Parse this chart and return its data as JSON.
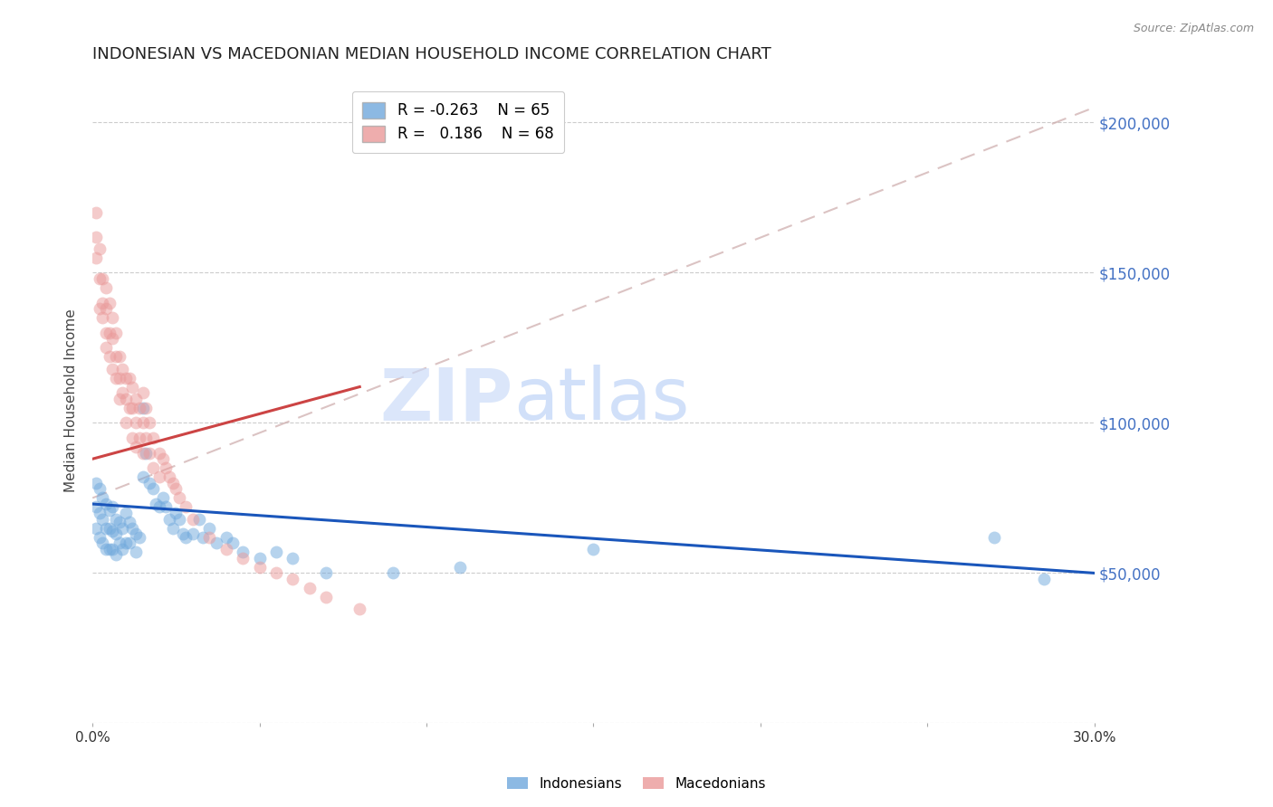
{
  "title": "INDONESIAN VS MACEDONIAN MEDIAN HOUSEHOLD INCOME CORRELATION CHART",
  "source": "Source: ZipAtlas.com",
  "ylabel": "Median Household Income",
  "yticks": [
    0,
    50000,
    100000,
    150000,
    200000
  ],
  "ytick_labels": [
    "",
    "$50,000",
    "$100,000",
    "$150,000",
    "$200,000"
  ],
  "ylim": [
    0,
    215000
  ],
  "xlim": [
    0.0,
    0.3
  ],
  "watermark_zip": "ZIP",
  "watermark_atlas": "atlas",
  "legend": {
    "indonesian": {
      "R": "-0.263",
      "N": "65",
      "color": "#6fa8dc"
    },
    "macedonian": {
      "R": "0.186",
      "N": "68",
      "color": "#ea9999"
    }
  },
  "indonesian_scatter": {
    "x": [
      0.001,
      0.001,
      0.001,
      0.002,
      0.002,
      0.002,
      0.003,
      0.003,
      0.003,
      0.004,
      0.004,
      0.004,
      0.005,
      0.005,
      0.005,
      0.006,
      0.006,
      0.006,
      0.007,
      0.007,
      0.007,
      0.008,
      0.008,
      0.009,
      0.009,
      0.01,
      0.01,
      0.011,
      0.011,
      0.012,
      0.013,
      0.013,
      0.014,
      0.015,
      0.015,
      0.016,
      0.017,
      0.018,
      0.019,
      0.02,
      0.021,
      0.022,
      0.023,
      0.024,
      0.025,
      0.026,
      0.027,
      0.028,
      0.03,
      0.032,
      0.033,
      0.035,
      0.037,
      0.04,
      0.042,
      0.045,
      0.05,
      0.055,
      0.06,
      0.07,
      0.09,
      0.11,
      0.15,
      0.27,
      0.285
    ],
    "y": [
      80000,
      72000,
      65000,
      78000,
      70000,
      62000,
      75000,
      68000,
      60000,
      73000,
      65000,
      58000,
      71000,
      65000,
      58000,
      72000,
      64000,
      58000,
      68000,
      63000,
      56000,
      67000,
      60000,
      65000,
      58000,
      70000,
      60000,
      67000,
      60000,
      65000,
      63000,
      57000,
      62000,
      105000,
      82000,
      90000,
      80000,
      78000,
      73000,
      72000,
      75000,
      72000,
      68000,
      65000,
      70000,
      68000,
      63000,
      62000,
      63000,
      68000,
      62000,
      65000,
      60000,
      62000,
      60000,
      57000,
      55000,
      57000,
      55000,
      50000,
      50000,
      52000,
      58000,
      62000,
      48000
    ]
  },
  "macedonian_scatter": {
    "x": [
      0.001,
      0.001,
      0.001,
      0.002,
      0.002,
      0.002,
      0.003,
      0.003,
      0.003,
      0.004,
      0.004,
      0.004,
      0.004,
      0.005,
      0.005,
      0.005,
      0.006,
      0.006,
      0.006,
      0.007,
      0.007,
      0.007,
      0.008,
      0.008,
      0.008,
      0.009,
      0.009,
      0.01,
      0.01,
      0.01,
      0.011,
      0.011,
      0.012,
      0.012,
      0.012,
      0.013,
      0.013,
      0.013,
      0.014,
      0.014,
      0.015,
      0.015,
      0.015,
      0.016,
      0.016,
      0.017,
      0.017,
      0.018,
      0.018,
      0.02,
      0.02,
      0.021,
      0.022,
      0.023,
      0.024,
      0.025,
      0.026,
      0.028,
      0.03,
      0.035,
      0.04,
      0.045,
      0.05,
      0.055,
      0.06,
      0.065,
      0.07,
      0.08
    ],
    "y": [
      170000,
      162000,
      155000,
      158000,
      148000,
      138000,
      148000,
      140000,
      135000,
      145000,
      138000,
      130000,
      125000,
      140000,
      130000,
      122000,
      135000,
      128000,
      118000,
      130000,
      122000,
      115000,
      122000,
      115000,
      108000,
      118000,
      110000,
      115000,
      108000,
      100000,
      115000,
      105000,
      112000,
      105000,
      95000,
      108000,
      100000,
      92000,
      105000,
      95000,
      110000,
      100000,
      90000,
      105000,
      95000,
      100000,
      90000,
      95000,
      85000,
      90000,
      82000,
      88000,
      85000,
      82000,
      80000,
      78000,
      75000,
      72000,
      68000,
      62000,
      58000,
      55000,
      52000,
      50000,
      48000,
      45000,
      42000,
      38000
    ]
  },
  "indonesian_line": {
    "x0": 0.0,
    "y0": 73000,
    "x1": 0.3,
    "y1": 50000
  },
  "macedonian_line_solid": {
    "x0": 0.0,
    "y0": 88000,
    "x1": 0.08,
    "y1": 112000
  },
  "macedonian_line_dashed": {
    "x0": 0.0,
    "y0": 75000,
    "x1": 0.3,
    "y1": 205000
  },
  "bg_color": "#ffffff",
  "scatter_alpha": 0.5,
  "marker_size": 100,
  "indonesian_color": "#6fa8dc",
  "macedonian_color": "#ea9999",
  "indonesian_line_color": "#1a56bb",
  "macedonian_line_color": "#cc4444",
  "macedonian_dashed_color": "#ccaaaa",
  "grid_color": "#cccccc",
  "ytick_color": "#4472c4",
  "title_color": "#222222",
  "source_color": "#888888"
}
